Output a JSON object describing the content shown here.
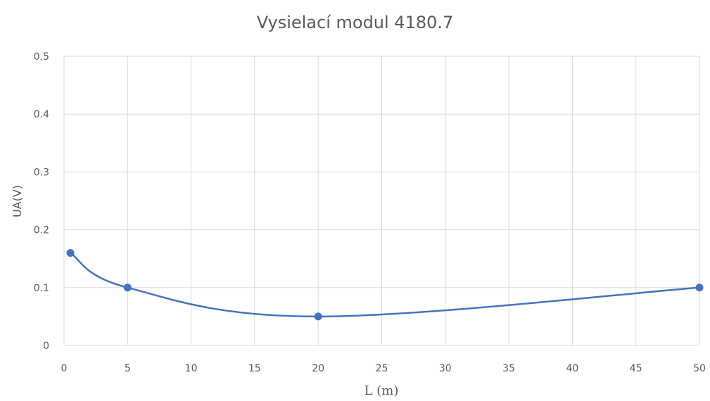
{
  "chart_data": {
    "type": "line",
    "title": "Vysielací modul 4180.7",
    "xlabel": "L (m)",
    "ylabel": "UA(V)",
    "xlim": [
      0,
      50
    ],
    "ylim": [
      0,
      0.5
    ],
    "x_ticks": [
      0,
      5,
      10,
      15,
      20,
      25,
      30,
      35,
      40,
      45,
      50
    ],
    "y_ticks": [
      0,
      0.1,
      0.2,
      0.3,
      0.4,
      0.5
    ],
    "grid": true,
    "legend": "none",
    "series": [
      {
        "color": "#4472c4",
        "x": [
          0.5,
          5,
          20,
          50
        ],
        "y": [
          0.16,
          0.1,
          0.05,
          0.1
        ]
      }
    ]
  }
}
